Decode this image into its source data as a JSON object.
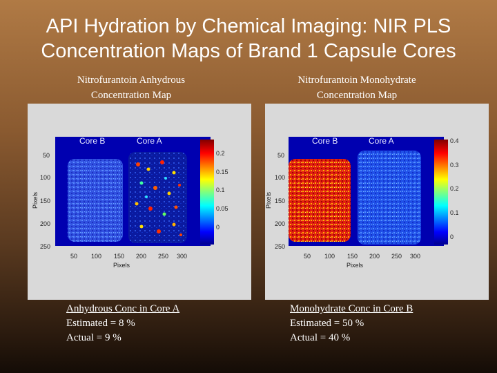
{
  "slide_title_line1": "API Hydration by Chemical Imaging: NIR PLS",
  "slide_title_line2": "Concentration Maps of Brand 1 Capsule Cores",
  "colors": {
    "panel_bg": "#d9d9d9",
    "map_bg": "#0000b0",
    "text": "#ffffff"
  },
  "left_panel": {
    "title_line1": "Nitrofurantoin Anhydrous",
    "title_line2": "Concentration Map",
    "core_b_label": "Core B",
    "core_a_label": "Core A",
    "y_axis_label": "Pixels",
    "x_axis_label": "Pixels",
    "y_ticks": [
      "50",
      "100",
      "150",
      "200",
      "250"
    ],
    "x_ticks": [
      "50",
      "100",
      "150",
      "200",
      "250",
      "300"
    ],
    "colorbar_ticks": [
      "0.2",
      "0.15",
      "0.1",
      "0.05",
      "0"
    ]
  },
  "right_panel": {
    "title_line1": "Nitrofurantoin Monohydrate",
    "title_line2": "Concentration Map",
    "core_b_label": "Core B",
    "core_a_label": "Core A",
    "y_axis_label": "Pixels",
    "x_axis_label": "Pixels",
    "y_ticks": [
      "50",
      "100",
      "150",
      "200",
      "250"
    ],
    "x_ticks": [
      "50",
      "100",
      "150",
      "200",
      "250",
      "300"
    ],
    "colorbar_ticks": [
      "0.4",
      "0.3",
      "0.2",
      "0.1",
      "0"
    ]
  },
  "left_caption": {
    "heading": "Anhydrous Conc in Core A",
    "estimated": "Estimated = 8 %",
    "actual": "Actual = 9 %"
  },
  "right_caption": {
    "heading": "Monohydrate Conc in Core B",
    "estimated": "Estimated = 50 %",
    "actual": "Actual = 40 %"
  }
}
